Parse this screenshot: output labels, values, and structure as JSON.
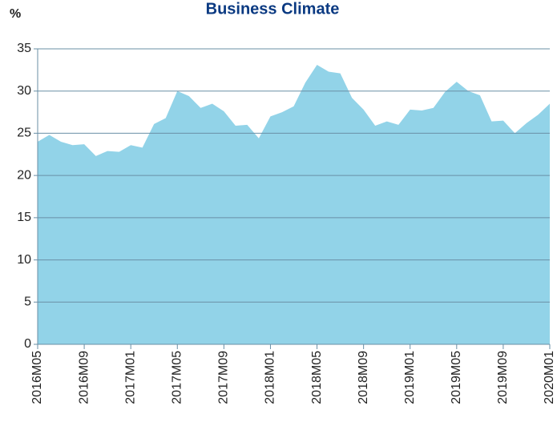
{
  "chart_data": {
    "type": "area",
    "title": "Business Climate",
    "y_label": "%",
    "categories": [
      "2016M05",
      null,
      null,
      null,
      "2016M09",
      null,
      null,
      null,
      "2017M01",
      null,
      null,
      null,
      "2017M05",
      null,
      null,
      null,
      "2017M09",
      null,
      null,
      null,
      "2018M01",
      null,
      null,
      null,
      "2018M05",
      null,
      null,
      null,
      "2018M09",
      null,
      null,
      null,
      "2019M01",
      null,
      null,
      null,
      "2019M05",
      null,
      null,
      null,
      "2019M09",
      null,
      null,
      null,
      "2020M01"
    ],
    "values": [
      24.0,
      24.8,
      24.0,
      23.6,
      23.7,
      22.3,
      22.9,
      22.8,
      23.6,
      23.3,
      26.1,
      26.8,
      30.0,
      29.4,
      28.0,
      28.5,
      27.6,
      25.9,
      26.0,
      24.4,
      27.0,
      27.5,
      28.2,
      31.0,
      33.1,
      32.3,
      32.1,
      29.2,
      27.8,
      25.9,
      26.4,
      26.0,
      27.8,
      27.7,
      28.0,
      29.9,
      31.1,
      30.0,
      29.5,
      26.4,
      26.5,
      25.0,
      26.2,
      27.2,
      28.5
    ],
    "color": "#92d3e8",
    "title_color": "#0b3a82",
    "ylim": [
      0,
      35
    ],
    "yticks": [
      0,
      5,
      10,
      15,
      20,
      25,
      30,
      35
    ],
    "grid": true
  }
}
